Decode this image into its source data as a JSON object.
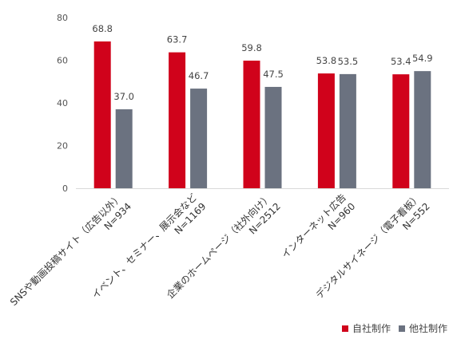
{
  "chart_data": {
    "type": "bar",
    "categories": [
      [
        "SNSや動画投稿サイト（広告以外）",
        "N=934"
      ],
      [
        "イベント、セミナー、展示会など",
        "N=1169"
      ],
      [
        "企業のホームページ（社外向け）",
        "N=2512"
      ],
      [
        "インターネット広告",
        "N=960"
      ],
      [
        "デジタルサイネージ（電子看板）",
        "N=552"
      ]
    ],
    "series": [
      {
        "name": "自社制作",
        "values": [
          68.8,
          63.7,
          59.8,
          53.8,
          53.4
        ],
        "color": "#d0021b"
      },
      {
        "name": "他社制作",
        "values": [
          37.0,
          46.7,
          47.5,
          53.5,
          54.9
        ],
        "color": "#6b7280"
      }
    ],
    "ylim": [
      0,
      80
    ],
    "yticks": [
      0,
      20,
      40,
      60,
      80
    ],
    "grid": false,
    "legend": "bottom-right"
  }
}
